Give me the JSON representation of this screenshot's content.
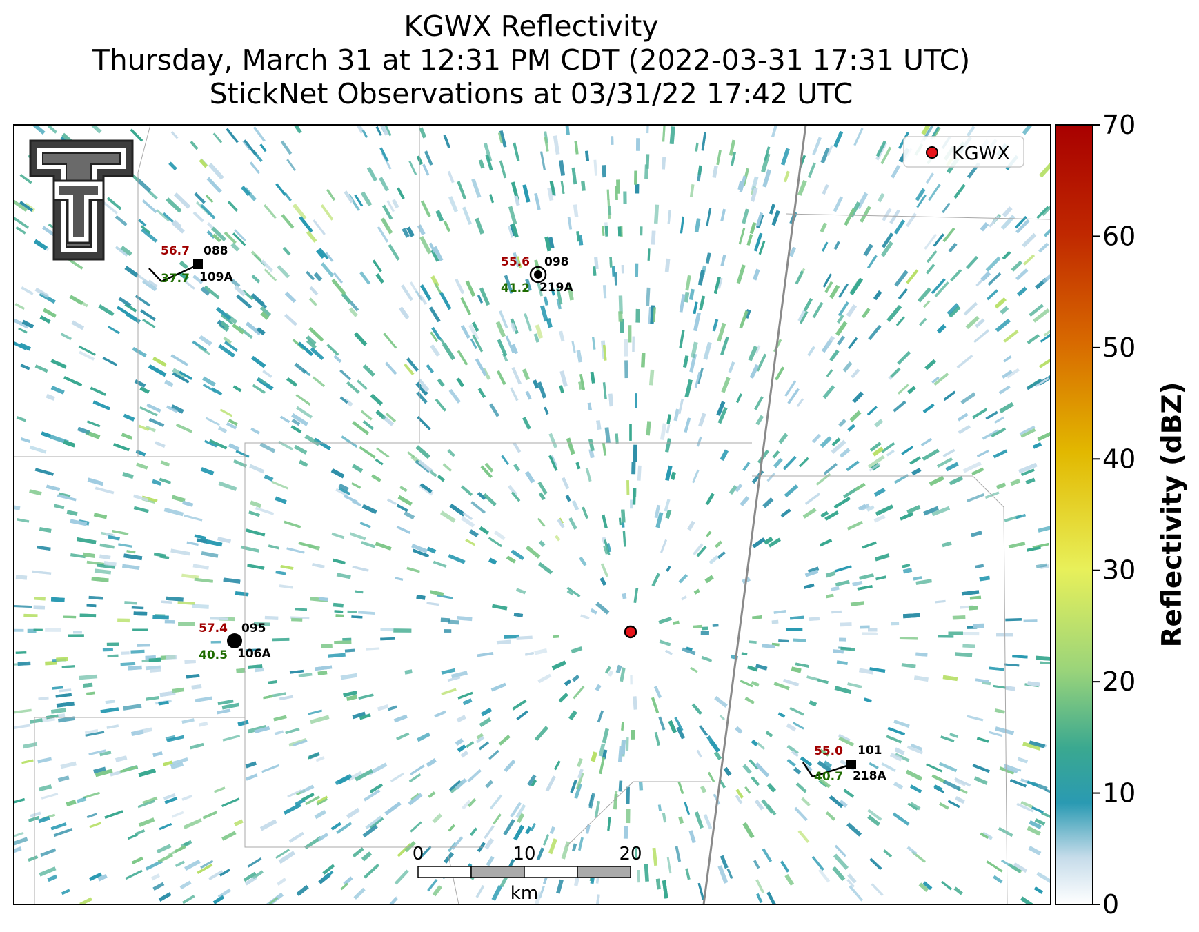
{
  "title": {
    "line1": "KGWX Reflectivity",
    "line2": "Thursday, March 31 at 12:31 PM CDT (2022-03-31 17:31 UTC)",
    "line3": "StickNet Observations at 03/31/22 17:42 UTC"
  },
  "legend": {
    "label": "KGWX",
    "marker_color": "#e8141a"
  },
  "colorbar": {
    "label": "Reflectivity (dBZ)",
    "ticks": [
      "0",
      "10",
      "20",
      "30",
      "40",
      "50",
      "60",
      "70"
    ],
    "range": [
      0,
      70
    ],
    "colors": [
      "#ffffff",
      "#c6dcea",
      "#2a9ab2",
      "#3aa890",
      "#9ad47a",
      "#e8f05a",
      "#e2b800",
      "#d86a00",
      "#c02800",
      "#a80000"
    ]
  },
  "scalebar": {
    "ticks": [
      "0",
      "10",
      "20"
    ],
    "unit": "km"
  },
  "logo": {
    "name": "Texas Tech Double T"
  },
  "stations": [
    {
      "id": "109A",
      "temp": "56.7",
      "pressure": "088",
      "dewpoint": "37.7",
      "marker": "square"
    },
    {
      "id": "219A",
      "temp": "55.6",
      "pressure": "098",
      "dewpoint": "41.2",
      "marker": "calm-circle"
    },
    {
      "id": "106A",
      "temp": "57.4",
      "pressure": "095",
      "dewpoint": "40.5",
      "marker": "circle"
    },
    {
      "id": "218A",
      "temp": "55.0",
      "pressure": "101",
      "dewpoint": "40.7",
      "marker": "square"
    }
  ],
  "colors": {
    "temp": "#a00000",
    "dewpoint": "#1e6b00",
    "echo": "#2a9ab2"
  }
}
